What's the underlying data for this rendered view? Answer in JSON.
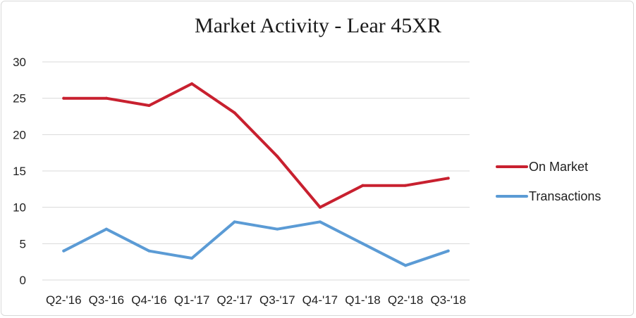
{
  "chart_data": {
    "type": "line",
    "title": "Market Activity - Lear 45XR",
    "xlabel": "",
    "ylabel": "",
    "categories": [
      "Q2-'16",
      "Q3-'16",
      "Q4-'16",
      "Q1-'17",
      "Q2-'17",
      "Q3-'17",
      "Q4-'17",
      "Q1-'18",
      "Q2-'18",
      "Q3-'18"
    ],
    "series": [
      {
        "name": "On Market",
        "color": "#c8202f",
        "values": [
          25,
          25,
          24,
          27,
          23,
          17,
          10,
          13,
          13,
          14
        ]
      },
      {
        "name": "Transactions",
        "color": "#5b9bd5",
        "values": [
          4,
          7,
          4,
          3,
          8,
          7,
          8,
          5,
          2,
          4
        ]
      }
    ],
    "ylim": [
      0,
      30
    ],
    "yticks": [
      0,
      5,
      10,
      15,
      20,
      25,
      30
    ],
    "grid": true,
    "legend": "right"
  }
}
